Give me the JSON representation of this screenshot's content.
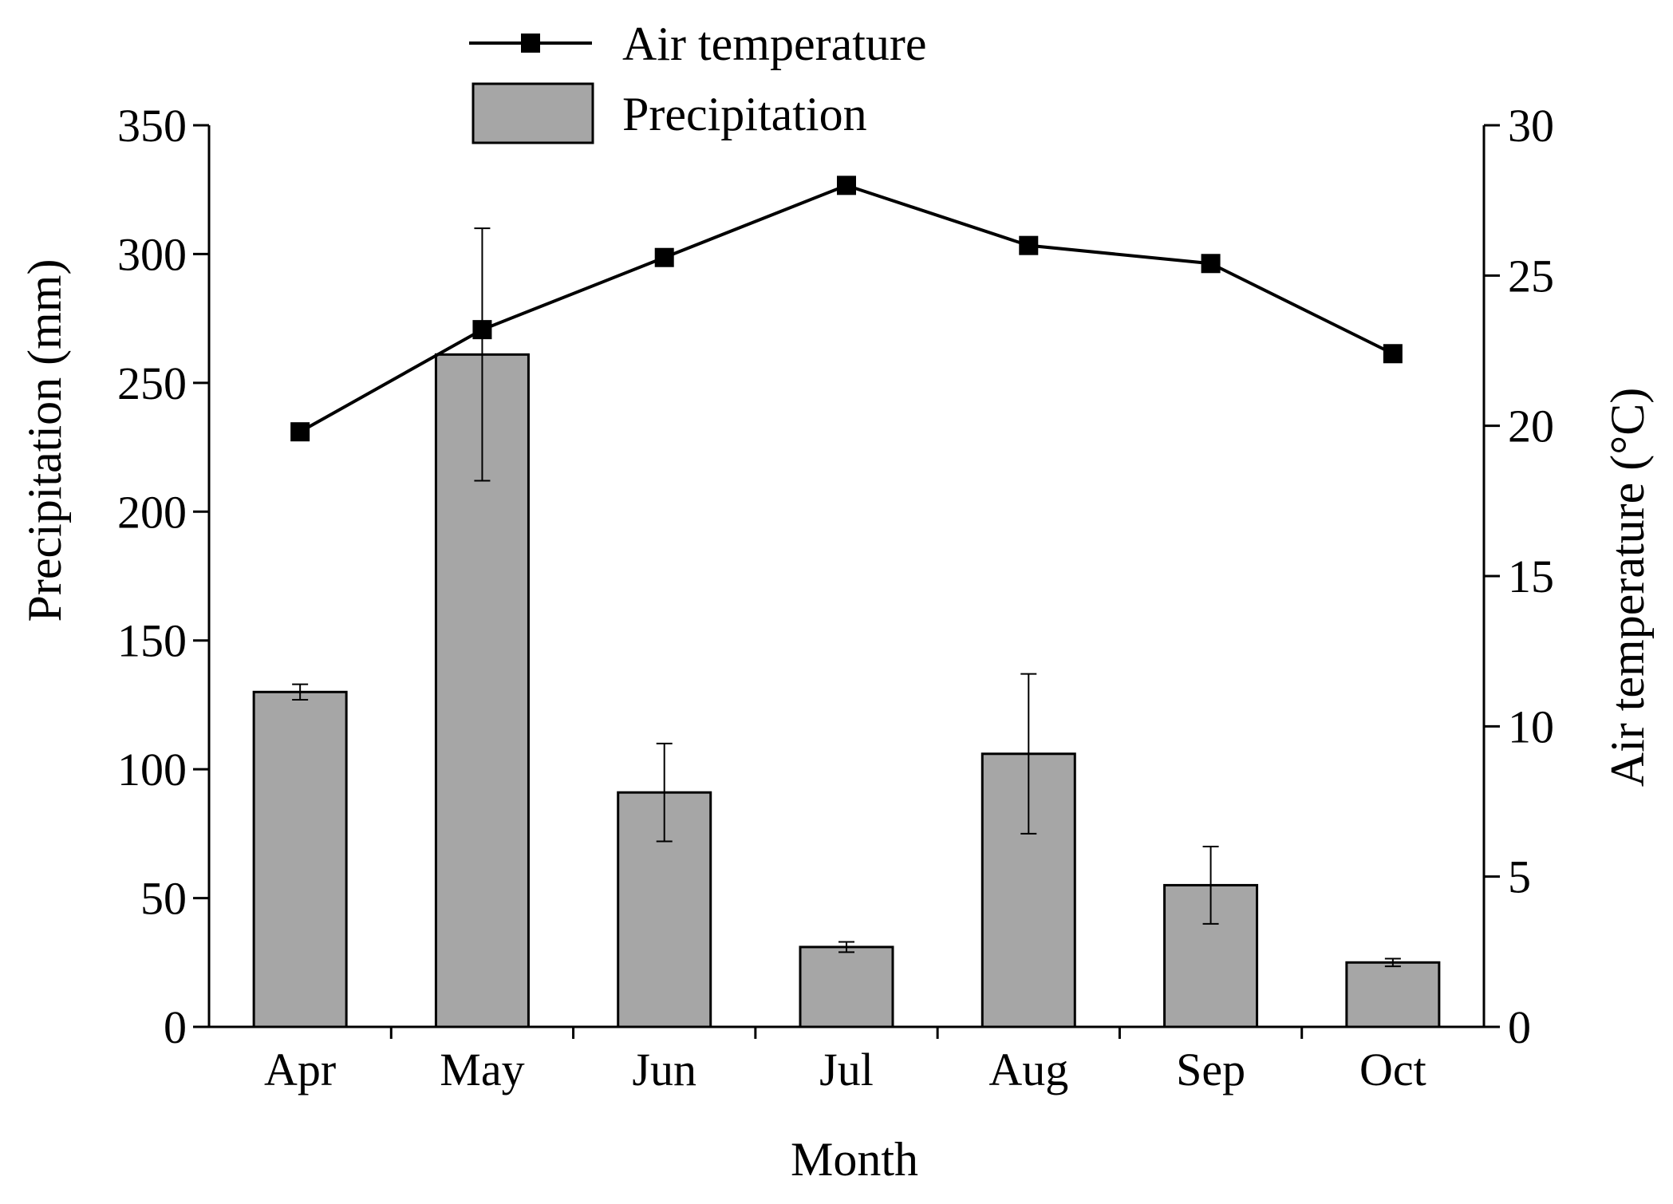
{
  "chart_data": {
    "type": "bar",
    "categories": [
      "Apr",
      "May",
      "Jun",
      "Jul",
      "Aug",
      "Sep",
      "Oct"
    ],
    "series": [
      {
        "name": "Precipitation",
        "kind": "bar",
        "axis": "left",
        "color": "#a6a6a6",
        "values": [
          130,
          261,
          91,
          31,
          106,
          55,
          25
        ],
        "errors": [
          3,
          49,
          19,
          2,
          31,
          15,
          1.5
        ]
      },
      {
        "name": "Air temperature",
        "kind": "line",
        "axis": "right",
        "color": "#000000",
        "marker": "square",
        "values": [
          19.8,
          23.2,
          25.6,
          28.0,
          26.0,
          25.4,
          22.4
        ]
      }
    ],
    "xlabel": "Month",
    "ylabel": "Precipitation (mm)",
    "y2label": "Air temperature (°C)",
    "ylim": [
      0,
      350
    ],
    "y2lim": [
      0,
      30
    ],
    "yticks": [
      "0",
      "50",
      "100",
      "150",
      "200",
      "250",
      "300",
      "350"
    ],
    "y2ticks": [
      "0",
      "5",
      "10",
      "15",
      "20",
      "25",
      "30"
    ],
    "legend": {
      "placement": "top-center",
      "entries": [
        "Air temperature",
        "Precipitation"
      ]
    }
  }
}
